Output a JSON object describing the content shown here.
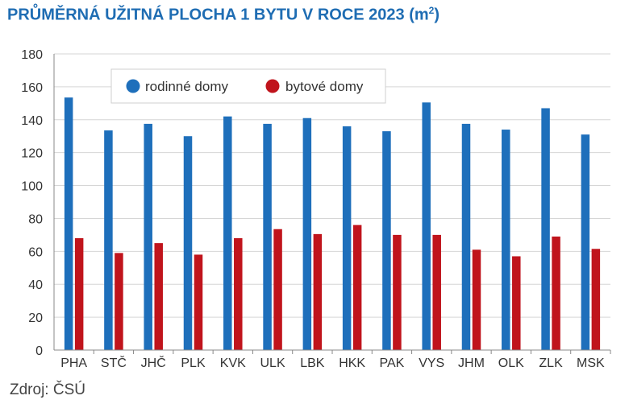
{
  "title_main": "PRŮMĚRNÁ UŽITNÁ PLOCHA 1 BYTU V ROCE 2023 (m",
  "title_sup": "2",
  "title_end": ")",
  "source": "Zdroj: ČSÚ",
  "colors": {
    "rodinne": "#1e6fbb",
    "bytove": "#c0141c",
    "title": "#1f6db3"
  },
  "chart_data": {
    "type": "bar",
    "title": "PRŮMĚRNÁ UŽITNÁ PLOCHA 1 BYTU V ROCE 2023 (m2)",
    "categories": [
      "PHA",
      "STČ",
      "JHČ",
      "PLK",
      "KVK",
      "ULK",
      "LBK",
      "HKK",
      "PAK",
      "VYS",
      "JHM",
      "OLK",
      "ZLK",
      "MSK"
    ],
    "series": [
      {
        "name": "rodinné domy",
        "values": [
          153.5,
          133.5,
          137.5,
          130,
          142,
          137.5,
          141,
          136,
          133,
          150.5,
          137.5,
          134,
          147,
          131
        ]
      },
      {
        "name": "bytové domy",
        "values": [
          68,
          59,
          65,
          58,
          68,
          73.5,
          70.5,
          76,
          70,
          70,
          61,
          57,
          69,
          61.5
        ]
      }
    ],
    "ylim": [
      0,
      180
    ],
    "yticks": [
      0,
      20,
      40,
      60,
      80,
      100,
      120,
      140,
      160,
      180
    ],
    "grid": true,
    "legend_position": "top-left"
  }
}
